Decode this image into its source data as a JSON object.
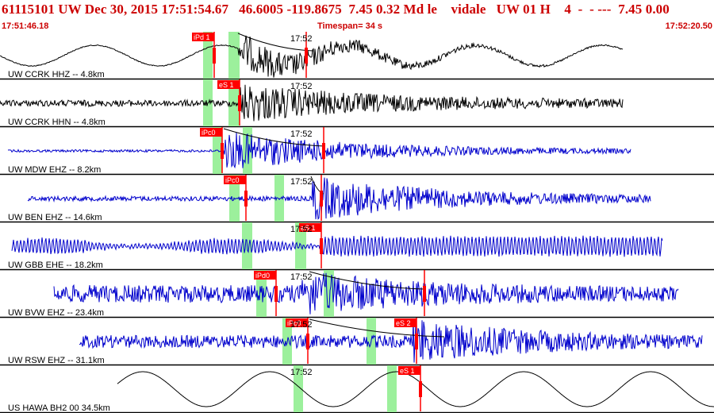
{
  "header": {
    "event_line": "61115101 UW Dec 30, 2015 17:51:54.67   46.6005 -119.8675  7.45 0.32 Md le    vidale   UW 01 H    4  -  - ---  7.45 0.00",
    "start_time": "17:51:46.18",
    "timespan": "Timespan=  34 s",
    "end_time": "17:52:20.50"
  },
  "colors": {
    "header_text": "#cc0000",
    "pick": "#ff0000",
    "window": "#9cf09c",
    "trace_velocity": "#0000cc",
    "trace_broadband": "#000000"
  },
  "minute_mark": "17:52",
  "channels": [
    {
      "label": "UW CCRK HHZ -- 4.8km",
      "color": "black",
      "picks": [
        {
          "label": "iPd 1",
          "side": "left"
        },
        {
          "label": "",
          "side": "right"
        }
      ]
    },
    {
      "label": "UW CCRK HHN -- 4.8km",
      "color": "black",
      "picks": [
        {
          "label": "eS 1",
          "side": "left"
        }
      ]
    },
    {
      "label": "UW MDW EHZ -- 8.2km",
      "color": "blue",
      "picks": [
        {
          "label": "iPc0",
          "side": "left"
        },
        {
          "label": "",
          "side": "right"
        }
      ]
    },
    {
      "label": "UW BEN EHZ -- 14.6km",
      "color": "blue",
      "picks": [
        {
          "label": "iPc0",
          "side": "left"
        },
        {
          "label": "",
          "side": "right"
        }
      ]
    },
    {
      "label": "UW GBB EHE -- 18.2km",
      "color": "blue",
      "picks": [
        {
          "label": "eS 1",
          "side": "left"
        }
      ]
    },
    {
      "label": "UW BVW EHZ -- 23.4km",
      "color": "blue",
      "picks": [
        {
          "label": "iPd0",
          "side": "left"
        },
        {
          "label": "",
          "side": "right"
        }
      ]
    },
    {
      "label": "UW RSW EHZ -- 31.1km",
      "color": "blue",
      "picks": [
        {
          "label": "iPc0",
          "side": "left"
        },
        {
          "label": "eS 2",
          "side": "left"
        }
      ]
    },
    {
      "label": "US HAWA BH2 00 34.5km",
      "color": "black",
      "picks": [
        {
          "label": "eS 1",
          "side": "left"
        }
      ]
    }
  ]
}
